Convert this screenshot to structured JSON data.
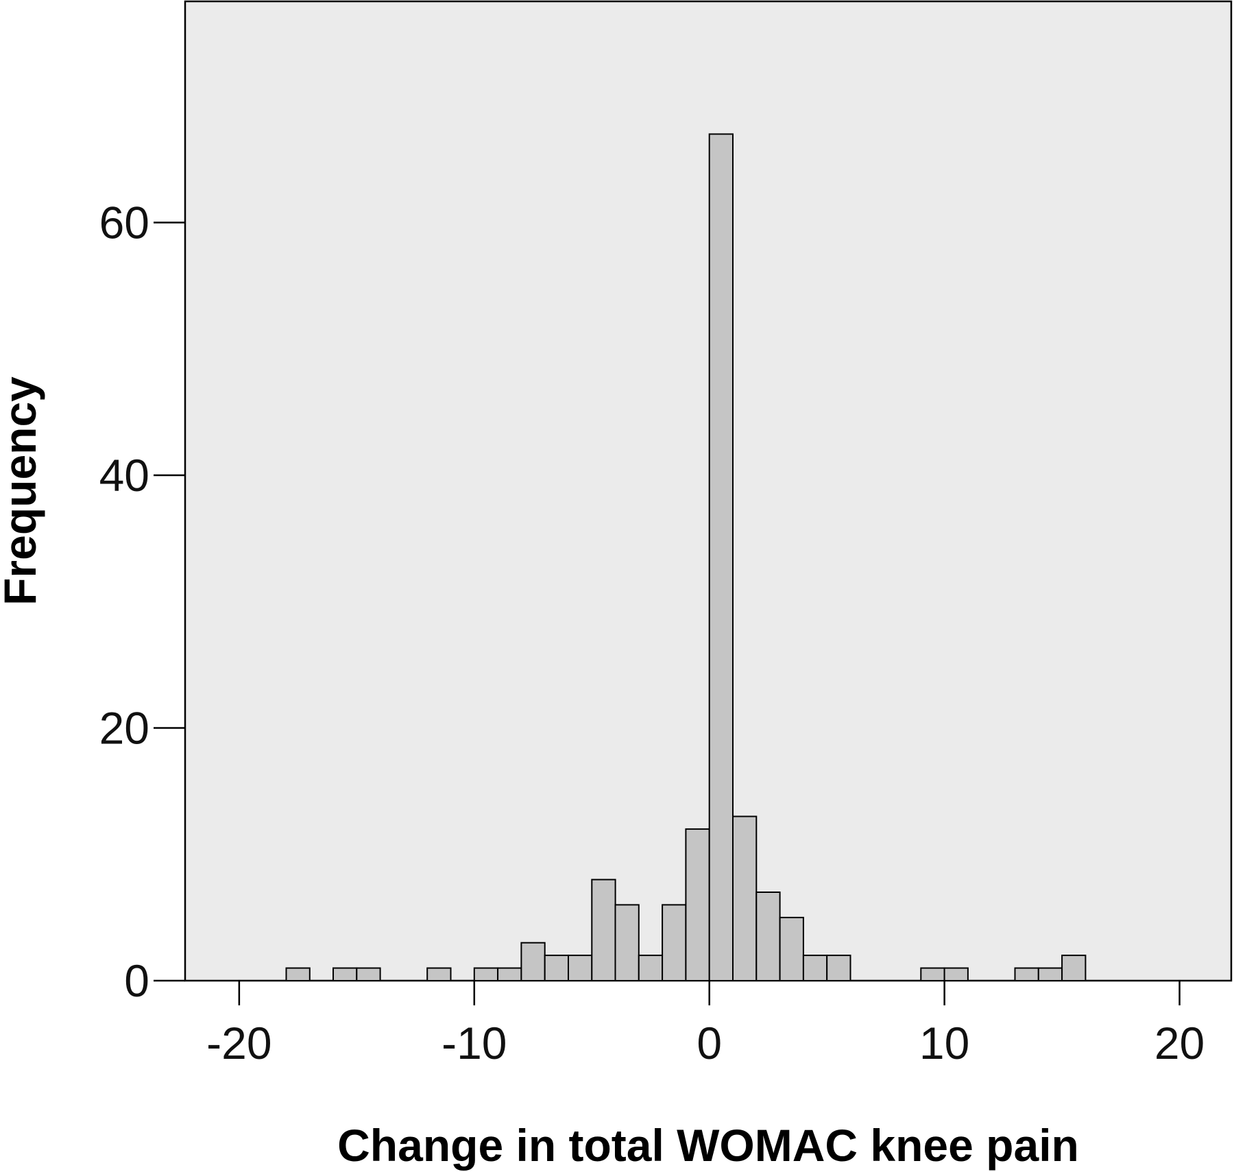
{
  "chart_data": {
    "type": "bar",
    "subtype": "histogram",
    "title": "",
    "xlabel": "Change in total WOMAC knee pain",
    "ylabel": "Frequency",
    "xlim": [
      -22.3,
      22.2
    ],
    "ylim": [
      0,
      77.5
    ],
    "x_ticks": [
      -20,
      -10,
      0,
      10,
      20
    ],
    "y_ticks": [
      0,
      20,
      40,
      60
    ],
    "x_tick_labels": [
      "-20",
      "-10",
      "0",
      "10",
      "20"
    ],
    "y_tick_labels": [
      "0",
      "20",
      "40",
      "60"
    ],
    "bin_width": 1,
    "bins": [
      {
        "start": -18,
        "end": -17,
        "count": 1
      },
      {
        "start": -16,
        "end": -15,
        "count": 1
      },
      {
        "start": -15,
        "end": -14,
        "count": 1
      },
      {
        "start": -12,
        "end": -11,
        "count": 1
      },
      {
        "start": -10,
        "end": -9,
        "count": 1
      },
      {
        "start": -9,
        "end": -8,
        "count": 1
      },
      {
        "start": -8,
        "end": -7,
        "count": 3
      },
      {
        "start": -7,
        "end": -6,
        "count": 2
      },
      {
        "start": -6,
        "end": -5,
        "count": 2
      },
      {
        "start": -5,
        "end": -4,
        "count": 8
      },
      {
        "start": -4,
        "end": -3,
        "count": 6
      },
      {
        "start": -3,
        "end": -2,
        "count": 2
      },
      {
        "start": -2,
        "end": -1,
        "count": 6
      },
      {
        "start": -1,
        "end": 0,
        "count": 12
      },
      {
        "start": 0,
        "end": 1,
        "count": 67
      },
      {
        "start": 1,
        "end": 2,
        "count": 13
      },
      {
        "start": 2,
        "end": 3,
        "count": 7
      },
      {
        "start": 3,
        "end": 4,
        "count": 5
      },
      {
        "start": 4,
        "end": 5,
        "count": 2
      },
      {
        "start": 5,
        "end": 6,
        "count": 2
      },
      {
        "start": 9,
        "end": 10,
        "count": 1
      },
      {
        "start": 10,
        "end": 11,
        "count": 1
      },
      {
        "start": 13,
        "end": 14,
        "count": 1
      },
      {
        "start": 14,
        "end": 15,
        "count": 1
      },
      {
        "start": 15,
        "end": 16,
        "count": 2
      }
    ],
    "grid": false,
    "legend": "none",
    "colors": {
      "plot_background": "#ebebeb",
      "bar_fill": "#c5c5c5",
      "bar_stroke": "#000000",
      "axis": "#000000"
    }
  }
}
